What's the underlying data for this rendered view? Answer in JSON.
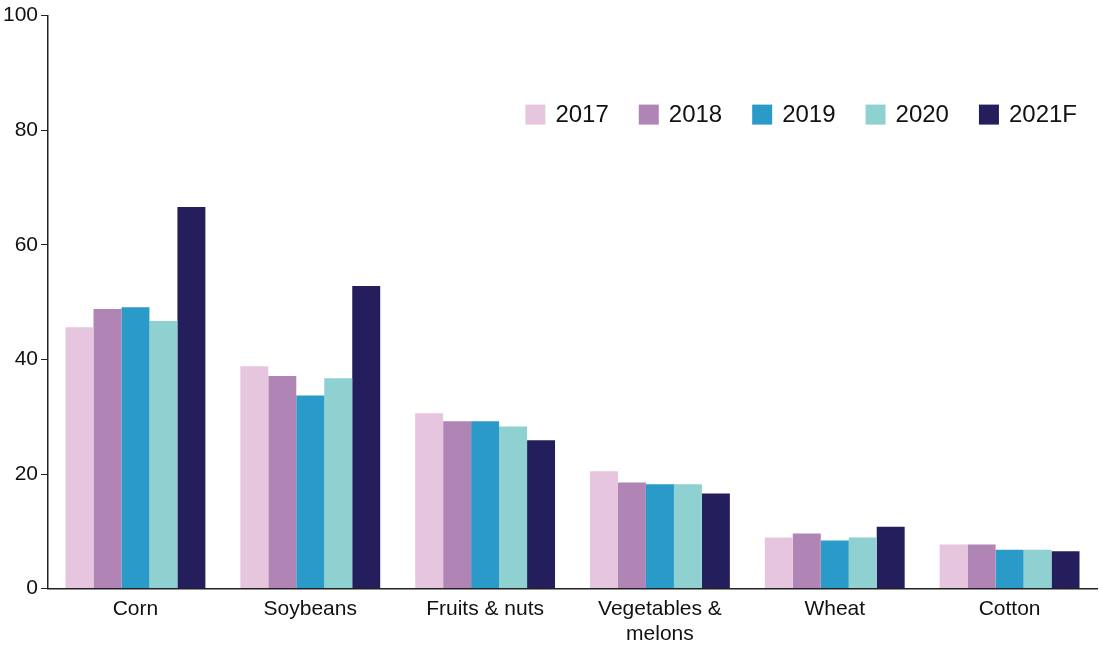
{
  "chart_data": {
    "type": "bar",
    "categories": [
      "Corn",
      "Soybeans",
      "Fruits & nuts",
      "Vegetables & melons",
      "Wheat",
      "Cotton"
    ],
    "series": [
      {
        "name": "2017",
        "color": "#e6c6de",
        "values": [
          45.6,
          38.8,
          30.6,
          20.5,
          8.9,
          7.7
        ]
      },
      {
        "name": "2018",
        "color": "#b085b5",
        "values": [
          48.8,
          37.1,
          29.2,
          18.5,
          9.6,
          7.7
        ]
      },
      {
        "name": "2019",
        "color": "#2a9ac9",
        "values": [
          49.1,
          33.7,
          29.2,
          18.2,
          8.4,
          6.8
        ]
      },
      {
        "name": "2020",
        "color": "#8fd0d0",
        "values": [
          46.7,
          36.7,
          28.3,
          18.2,
          8.9,
          6.8
        ]
      },
      {
        "name": "2021F",
        "color": "#241f5c",
        "values": [
          66.6,
          52.8,
          25.9,
          16.6,
          10.8,
          6.5
        ]
      }
    ],
    "ylim": [
      0,
      100
    ],
    "yticks": [
      0,
      20,
      40,
      60,
      80,
      100
    ],
    "grid": false,
    "legend": "top right"
  }
}
